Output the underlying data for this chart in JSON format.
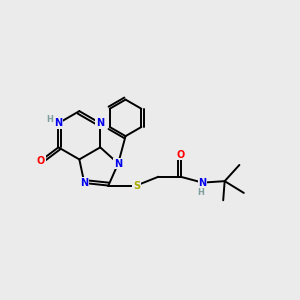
{
  "bg_color": "#ebebeb",
  "atom_colors": {
    "N": "#0000ee",
    "O": "#ff0000",
    "S": "#aaaa00",
    "C": "#000000",
    "H": "#7f9f9f"
  },
  "bond_color": "#000000",
  "figsize": [
    3.0,
    3.0
  ],
  "dpi": 100,
  "xlim": [
    0,
    10
  ],
  "ylim": [
    0,
    10
  ]
}
